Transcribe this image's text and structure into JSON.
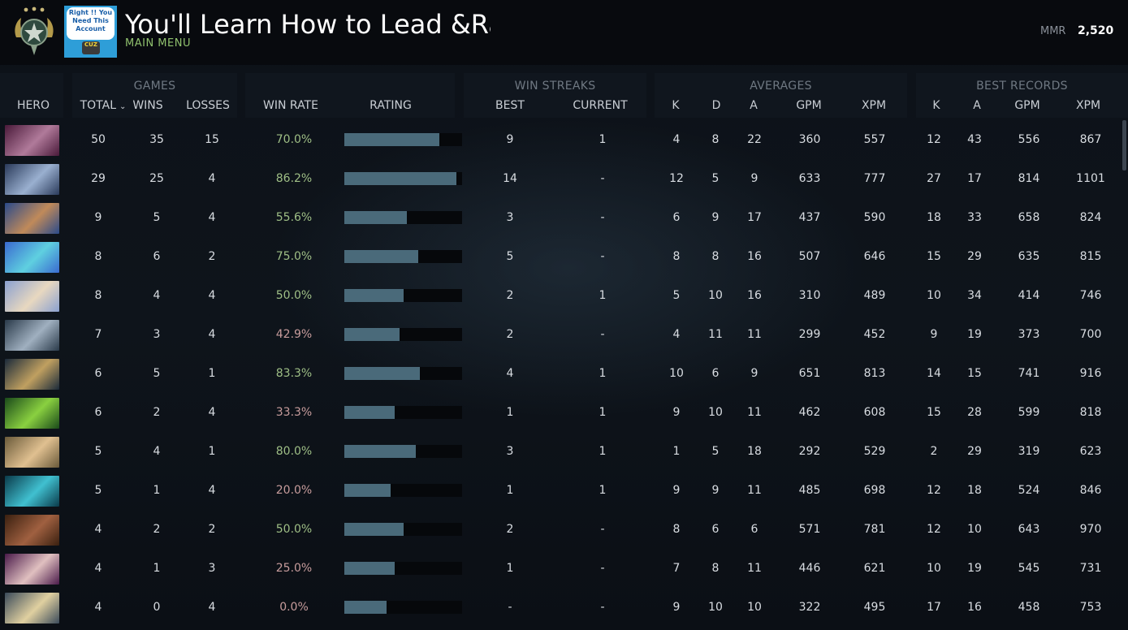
{
  "header": {
    "title": "You'll Learn How to Lead &Ra",
    "subtitle": "MAIN MENU",
    "avatar_text": "Right !! You Need This Account",
    "avatar_badge": "CUZ",
    "mmr_label": "MMR",
    "mmr_value": "2,520"
  },
  "groups": {
    "games": "GAMES",
    "win_streaks": "WIN STREAKS",
    "averages": "AVERAGES",
    "best_records": "BEST RECORDS"
  },
  "columns": {
    "hero": "HERO",
    "total": "TOTAL",
    "wins": "WINS",
    "losses": "LOSSES",
    "win_rate": "WIN RATE",
    "rating": "RATING",
    "best": "BEST",
    "current": "CURRENT",
    "avg_k": "K",
    "avg_d": "D",
    "avg_a": "A",
    "avg_gpm": "GPM",
    "avg_xpm": "XPM",
    "best_k": "K",
    "best_a": "A",
    "best_gpm": "GPM",
    "best_xpm": "XPM"
  },
  "colors": {
    "accent_green": "#8fc06d",
    "win_rate_high": "#9fbf86",
    "win_rate_low": "#c79c9c",
    "rating_bar": "#4a6a7a"
  },
  "rows": [
    {
      "hero_icon": "hero-portrait-1",
      "hero_colors": [
        "#4a1a3a",
        "#b07a9a"
      ],
      "total": "50",
      "wins": "35",
      "losses": "15",
      "win_rate": "70.0%",
      "rating": 0.81,
      "best": "9",
      "current": "1",
      "k": "4",
      "d": "8",
      "a": "22",
      "gpm": "360",
      "xpm": "557",
      "bk": "12",
      "ba": "43",
      "bgpm": "556",
      "bxpm": "867"
    },
    {
      "hero_icon": "hero-portrait-2",
      "hero_colors": [
        "#2a3a5a",
        "#9ab0d0"
      ],
      "total": "29",
      "wins": "25",
      "losses": "4",
      "win_rate": "86.2%",
      "rating": 0.95,
      "best": "14",
      "current": "-",
      "k": "12",
      "d": "5",
      "a": "9",
      "gpm": "633",
      "xpm": "777",
      "bk": "27",
      "ba": "17",
      "bgpm": "814",
      "bxpm": "1101"
    },
    {
      "hero_icon": "hero-portrait-3",
      "hero_colors": [
        "#2a4a8a",
        "#c08a5a"
      ],
      "total": "9",
      "wins": "5",
      "losses": "4",
      "win_rate": "55.6%",
      "rating": 0.53,
      "best": "3",
      "current": "-",
      "k": "6",
      "d": "9",
      "a": "17",
      "gpm": "437",
      "xpm": "590",
      "bk": "18",
      "ba": "33",
      "bgpm": "658",
      "bxpm": "824"
    },
    {
      "hero_icon": "hero-portrait-4",
      "hero_colors": [
        "#3a6ad0",
        "#5fd0e0"
      ],
      "total": "8",
      "wins": "6",
      "losses": "2",
      "win_rate": "75.0%",
      "rating": 0.63,
      "best": "5",
      "current": "-",
      "k": "8",
      "d": "8",
      "a": "16",
      "gpm": "507",
      "xpm": "646",
      "bk": "15",
      "ba": "29",
      "bgpm": "635",
      "bxpm": "815"
    },
    {
      "hero_icon": "hero-portrait-5",
      "hero_colors": [
        "#8aa0d0",
        "#e8d8c0"
      ],
      "total": "8",
      "wins": "4",
      "losses": "4",
      "win_rate": "50.0%",
      "rating": 0.5,
      "best": "2",
      "current": "1",
      "k": "5",
      "d": "10",
      "a": "16",
      "gpm": "310",
      "xpm": "489",
      "bk": "10",
      "ba": "34",
      "bgpm": "414",
      "bxpm": "746"
    },
    {
      "hero_icon": "hero-portrait-6",
      "hero_colors": [
        "#2a3a4a",
        "#a0b0c0"
      ],
      "total": "7",
      "wins": "3",
      "losses": "4",
      "win_rate": "42.9%",
      "rating": 0.47,
      "best": "2",
      "current": "-",
      "k": "4",
      "d": "11",
      "a": "11",
      "gpm": "299",
      "xpm": "452",
      "bk": "9",
      "ba": "19",
      "bgpm": "373",
      "bxpm": "700"
    },
    {
      "hero_icon": "hero-portrait-7",
      "hero_colors": [
        "#1a2a3a",
        "#c0a060"
      ],
      "total": "6",
      "wins": "5",
      "losses": "1",
      "win_rate": "83.3%",
      "rating": 0.64,
      "best": "4",
      "current": "1",
      "k": "10",
      "d": "6",
      "a": "9",
      "gpm": "651",
      "xpm": "813",
      "bk": "14",
      "ba": "15",
      "bgpm": "741",
      "bxpm": "916"
    },
    {
      "hero_icon": "hero-portrait-8",
      "hero_colors": [
        "#1a4a1a",
        "#8ad040"
      ],
      "total": "6",
      "wins": "2",
      "losses": "4",
      "win_rate": "33.3%",
      "rating": 0.43,
      "best": "1",
      "current": "1",
      "k": "9",
      "d": "10",
      "a": "11",
      "gpm": "462",
      "xpm": "608",
      "bk": "15",
      "ba": "28",
      "bgpm": "599",
      "bxpm": "818"
    },
    {
      "hero_icon": "hero-portrait-9",
      "hero_colors": [
        "#6a5a3a",
        "#e0c090"
      ],
      "total": "5",
      "wins": "4",
      "losses": "1",
      "win_rate": "80.0%",
      "rating": 0.61,
      "best": "3",
      "current": "1",
      "k": "1",
      "d": "5",
      "a": "18",
      "gpm": "292",
      "xpm": "529",
      "bk": "2",
      "ba": "29",
      "bgpm": "319",
      "bxpm": "623"
    },
    {
      "hero_icon": "hero-portrait-10",
      "hero_colors": [
        "#0a3a4a",
        "#40c0d0"
      ],
      "total": "5",
      "wins": "1",
      "losses": "4",
      "win_rate": "20.0%",
      "rating": 0.39,
      "best": "1",
      "current": "1",
      "k": "9",
      "d": "9",
      "a": "11",
      "gpm": "485",
      "xpm": "698",
      "bk": "12",
      "ba": "18",
      "bgpm": "524",
      "bxpm": "846"
    },
    {
      "hero_icon": "hero-portrait-11",
      "hero_colors": [
        "#3a2010",
        "#a06040"
      ],
      "total": "4",
      "wins": "2",
      "losses": "2",
      "win_rate": "50.0%",
      "rating": 0.5,
      "best": "2",
      "current": "-",
      "k": "8",
      "d": "6",
      "a": "6",
      "gpm": "571",
      "xpm": "781",
      "bk": "12",
      "ba": "10",
      "bgpm": "643",
      "bxpm": "970"
    },
    {
      "hero_icon": "hero-portrait-12",
      "hero_colors": [
        "#4a1a4a",
        "#e0c0c0"
      ],
      "total": "4",
      "wins": "1",
      "losses": "3",
      "win_rate": "25.0%",
      "rating": 0.43,
      "best": "1",
      "current": "-",
      "k": "7",
      "d": "8",
      "a": "11",
      "gpm": "446",
      "xpm": "621",
      "bk": "10",
      "ba": "19",
      "bgpm": "545",
      "bxpm": "731"
    },
    {
      "hero_icon": "hero-portrait-13",
      "hero_colors": [
        "#3a4a5a",
        "#e0d0a0"
      ],
      "total": "4",
      "wins": "0",
      "losses": "4",
      "win_rate": "0.0%",
      "rating": 0.36,
      "best": "-",
      "current": "-",
      "k": "9",
      "d": "10",
      "a": "10",
      "gpm": "322",
      "xpm": "495",
      "bk": "17",
      "ba": "16",
      "bgpm": "458",
      "bxpm": "753"
    }
  ]
}
